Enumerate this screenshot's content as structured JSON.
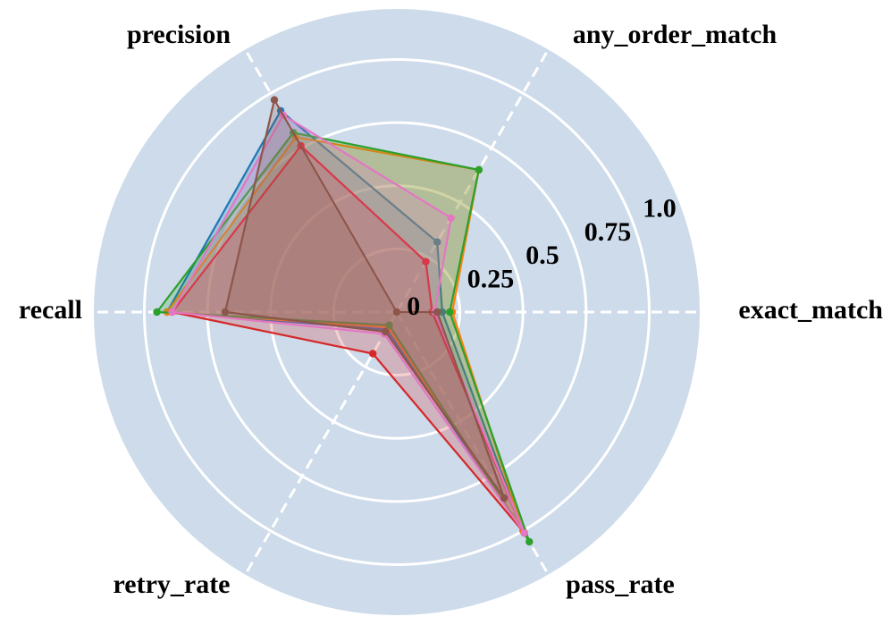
{
  "chart_data": {
    "type": "radar",
    "axes": [
      "exact_match",
      "any_order_match",
      "precision",
      "recall",
      "retry_rate",
      "pass_rate"
    ],
    "rlim": [
      0,
      1.2
    ],
    "ticks": [
      0,
      0.25,
      0.5,
      0.75,
      1.0
    ],
    "tick_labels": [
      "0",
      "0.25",
      "0.5",
      "0.75",
      "1.0"
    ],
    "grid": true,
    "background_color": "#cddbea",
    "grid_color": "#ffffff",
    "series": [
      {
        "color": "#1f77b4",
        "values": [
          0.18,
          0.32,
          0.92,
          0.91,
          0.08,
          1.0
        ]
      },
      {
        "color": "#ff7f0e",
        "values": [
          0.22,
          0.65,
          0.8,
          0.91,
          0.07,
          1.0
        ]
      },
      {
        "color": "#2ca02c",
        "values": [
          0.21,
          0.65,
          0.82,
          0.95,
          0.06,
          1.05
        ]
      },
      {
        "color": "#d62728",
        "values": [
          0.14,
          0.23,
          0.76,
          0.89,
          0.19,
          1.01
        ]
      },
      {
        "color": "#e377c2",
        "values": [
          0.15,
          0.43,
          0.9,
          0.89,
          0.1,
          1.01
        ]
      },
      {
        "color": "#8c564b",
        "values": [
          0.16,
          0.0,
          0.97,
          0.68,
          0.09,
          0.85
        ]
      }
    ]
  }
}
